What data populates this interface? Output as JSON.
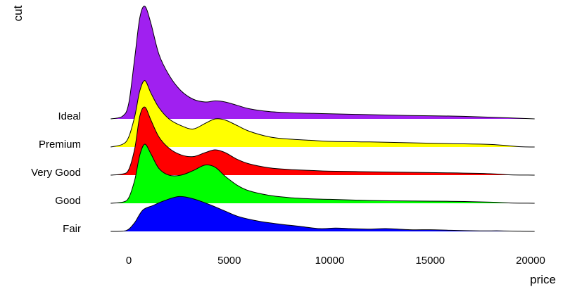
{
  "chart_data": {
    "type": "ridgeline",
    "xlabel": "price",
    "ylabel": "cut",
    "xlim": [
      -1000,
      20200
    ],
    "x_ticks": [
      0,
      5000,
      10000,
      15000,
      20000
    ],
    "grid": false,
    "legend": "none",
    "series": [
      {
        "name": "Fair",
        "color": "#0000ff",
        "density": [
          [
            -900,
            0
          ],
          [
            -300,
            0.005
          ],
          [
            0,
            0.04
          ],
          [
            300,
            0.16
          ],
          [
            700,
            0.38
          ],
          [
            1200,
            0.46
          ],
          [
            1800,
            0.55
          ],
          [
            2500,
            0.62
          ],
          [
            3200,
            0.58
          ],
          [
            4000,
            0.48
          ],
          [
            4800,
            0.36
          ],
          [
            5500,
            0.26
          ],
          [
            6500,
            0.18
          ],
          [
            7500,
            0.13
          ],
          [
            8500,
            0.09
          ],
          [
            9500,
            0.05
          ],
          [
            10300,
            0.06
          ],
          [
            11000,
            0.05
          ],
          [
            12000,
            0.04
          ],
          [
            12800,
            0.05
          ],
          [
            14000,
            0.03
          ],
          [
            15000,
            0.03
          ],
          [
            16000,
            0.02
          ],
          [
            17500,
            0.01
          ],
          [
            18500,
            0.01
          ],
          [
            19500,
            0.003
          ],
          [
            20200,
            0.0
          ]
        ]
      },
      {
        "name": "Good",
        "color": "#00ff00",
        "density": [
          [
            -900,
            0
          ],
          [
            -300,
            0.02
          ],
          [
            0,
            0.1
          ],
          [
            300,
            0.42
          ],
          [
            550,
            0.86
          ],
          [
            800,
            1.05
          ],
          [
            1100,
            0.88
          ],
          [
            1500,
            0.62
          ],
          [
            2000,
            0.5
          ],
          [
            2600,
            0.5
          ],
          [
            3200,
            0.58
          ],
          [
            3800,
            0.68
          ],
          [
            4300,
            0.64
          ],
          [
            4800,
            0.48
          ],
          [
            5400,
            0.32
          ],
          [
            6000,
            0.22
          ],
          [
            7000,
            0.14
          ],
          [
            8000,
            0.1
          ],
          [
            9000,
            0.08
          ],
          [
            10000,
            0.07
          ],
          [
            12000,
            0.05
          ],
          [
            14000,
            0.04
          ],
          [
            16000,
            0.035
          ],
          [
            18000,
            0.02
          ],
          [
            19000,
            0.005
          ],
          [
            20200,
            0.0
          ]
        ]
      },
      {
        "name": "Very Good",
        "color": "#ff0000",
        "density": [
          [
            -900,
            0
          ],
          [
            -300,
            0.02
          ],
          [
            0,
            0.1
          ],
          [
            300,
            0.48
          ],
          [
            550,
            1.05
          ],
          [
            800,
            1.21
          ],
          [
            1100,
            0.98
          ],
          [
            1500,
            0.68
          ],
          [
            2000,
            0.48
          ],
          [
            2600,
            0.36
          ],
          [
            3200,
            0.33
          ],
          [
            3800,
            0.4
          ],
          [
            4300,
            0.45
          ],
          [
            4800,
            0.4
          ],
          [
            5400,
            0.28
          ],
          [
            6000,
            0.2
          ],
          [
            7000,
            0.13
          ],
          [
            8000,
            0.1
          ],
          [
            9000,
            0.085
          ],
          [
            10000,
            0.07
          ],
          [
            12000,
            0.06
          ],
          [
            14000,
            0.05
          ],
          [
            16000,
            0.04
          ],
          [
            18000,
            0.025
          ],
          [
            19000,
            0.005
          ],
          [
            20200,
            0.0
          ]
        ]
      },
      {
        "name": "Premium",
        "color": "#ffff00",
        "density": [
          [
            -900,
            0
          ],
          [
            -300,
            0.05
          ],
          [
            0,
            0.18
          ],
          [
            300,
            0.55
          ],
          [
            550,
            1.0
          ],
          [
            800,
            1.18
          ],
          [
            1100,
            0.96
          ],
          [
            1500,
            0.7
          ],
          [
            2000,
            0.5
          ],
          [
            2600,
            0.38
          ],
          [
            3200,
            0.32
          ],
          [
            3800,
            0.42
          ],
          [
            4300,
            0.5
          ],
          [
            4800,
            0.48
          ],
          [
            5400,
            0.38
          ],
          [
            6000,
            0.28
          ],
          [
            7000,
            0.18
          ],
          [
            8000,
            0.14
          ],
          [
            9000,
            0.12
          ],
          [
            10000,
            0.1
          ],
          [
            12000,
            0.09
          ],
          [
            14000,
            0.075
          ],
          [
            16000,
            0.06
          ],
          [
            18000,
            0.045
          ],
          [
            19500,
            0.005
          ],
          [
            20200,
            0.0
          ]
        ]
      },
      {
        "name": "Ideal",
        "color": "#a020f0",
        "density": [
          [
            -900,
            0
          ],
          [
            -300,
            0.05
          ],
          [
            0,
            0.28
          ],
          [
            300,
            1.1
          ],
          [
            550,
            1.8
          ],
          [
            800,
            2.0
          ],
          [
            1100,
            1.7
          ],
          [
            1500,
            1.15
          ],
          [
            2000,
            0.78
          ],
          [
            2600,
            0.5
          ],
          [
            3200,
            0.35
          ],
          [
            3800,
            0.3
          ],
          [
            4300,
            0.32
          ],
          [
            4800,
            0.3
          ],
          [
            5400,
            0.24
          ],
          [
            6000,
            0.18
          ],
          [
            7000,
            0.13
          ],
          [
            8000,
            0.11
          ],
          [
            9000,
            0.1
          ],
          [
            10000,
            0.09
          ],
          [
            12000,
            0.075
          ],
          [
            14000,
            0.06
          ],
          [
            16000,
            0.05
          ],
          [
            18000,
            0.03
          ],
          [
            20200,
            0.0
          ]
        ]
      }
    ]
  }
}
